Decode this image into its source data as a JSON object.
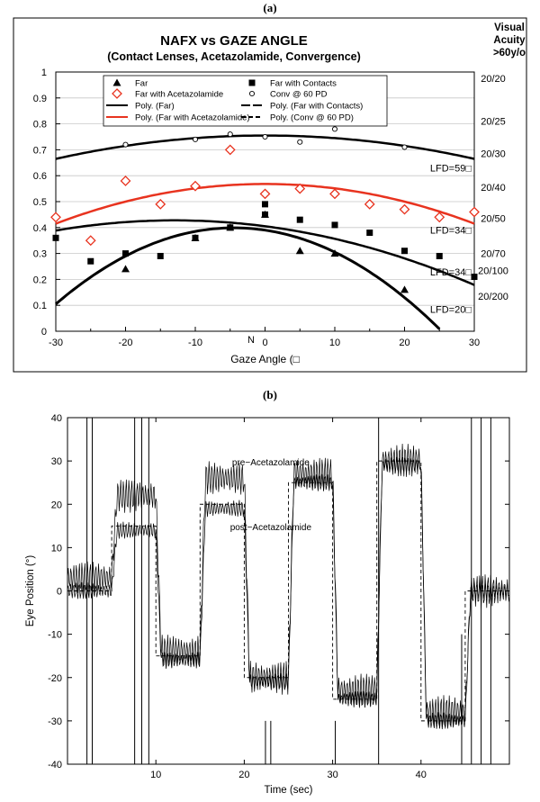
{
  "panel_a_label": "(a)",
  "panel_b_label": "(b)",
  "chart_data": [
    {
      "type": "scatter",
      "title": "NAFX vs GAZE ANGLE",
      "subtitle": "(Contact Lenses, Acetazolamide, Convergence)",
      "xlabel": "Gaze Angle (□",
      "ylabel": "",
      "xlim": [
        -30,
        30
      ],
      "ylim": [
        0,
        1
      ],
      "x_ticks": [
        "-30",
        "-20",
        "-10",
        "0",
        "10",
        "20",
        "30"
      ],
      "y_ticks": [
        "0",
        "0.1",
        "0.2",
        "0.3",
        "0.4",
        "0.5",
        "0.6",
        "0.7",
        "0.8",
        "0.9",
        "1"
      ],
      "extra_axis_label": "N",
      "grid": true,
      "legend_position": "top-center",
      "legend": [
        {
          "label": "Far",
          "marker": "triangle"
        },
        {
          "label": "Far with Contacts",
          "marker": "square"
        },
        {
          "label": "Far with Acetazolamide",
          "marker": "diamond"
        },
        {
          "label": "Conv @ 60 PD",
          "marker": "circle"
        },
        {
          "label": "Poly. (Far)",
          "line": "solid-black"
        },
        {
          "label": "Poly. (Far with Contacts)",
          "line": "longdash-black"
        },
        {
          "label": "Poly. (Far with Acetazolamide)",
          "line": "solid-red"
        },
        {
          "label": "Poly. (Conv @ 60 PD)",
          "line": "dash-black"
        }
      ],
      "series": [
        {
          "name": "Far",
          "marker": "triangle",
          "color": "#000000",
          "x": [
            -20,
            -10,
            -5,
            0,
            5,
            10,
            20
          ],
          "y": [
            0.24,
            0.36,
            0.4,
            0.45,
            0.31,
            0.3,
            0.16
          ]
        },
        {
          "name": "Far with Contacts",
          "marker": "square",
          "color": "#000000",
          "x": [
            -30,
            -25,
            -20,
            -15,
            -10,
            -5,
            0,
            0,
            5,
            10,
            15,
            20,
            25,
            30
          ],
          "y": [
            0.36,
            0.27,
            0.3,
            0.29,
            0.36,
            0.4,
            0.49,
            0.45,
            0.43,
            0.41,
            0.38,
            0.31,
            0.29,
            0.21
          ]
        },
        {
          "name": "Far with Acetazolamide",
          "marker": "diamond",
          "color": "#e8331f",
          "x": [
            -30,
            -25,
            -20,
            -15,
            -10,
            -5,
            0,
            5,
            10,
            15,
            20,
            25,
            30
          ],
          "y": [
            0.44,
            0.35,
            0.58,
            0.49,
            0.56,
            0.7,
            0.53,
            0.55,
            0.53,
            0.49,
            0.47,
            0.44,
            0.46
          ]
        },
        {
          "name": "Conv @ 60 PD",
          "marker": "circle",
          "color": "#000000",
          "x": [
            -20,
            -10,
            -5,
            0,
            5,
            10,
            20
          ],
          "y": [
            0.72,
            0.74,
            0.76,
            0.75,
            0.73,
            0.78,
            0.71
          ]
        }
      ],
      "fits": [
        {
          "name": "Poly. (Far)",
          "color": "#000000",
          "coef": [
            0.39,
            -0.004,
            -0.00045
          ],
          "width": 3
        },
        {
          "name": "Poly. (Far with Contacts)",
          "color": "#000000",
          "coef": [
            0.405,
            -0.0035,
            -0.000135
          ],
          "width": 2.5
        },
        {
          "name": "Poly. (Far with Acetazolamide)",
          "color": "#e8331f",
          "coef": [
            0.568,
            0.0,
            -0.00017
          ],
          "width": 2.5
        },
        {
          "name": "Poly. (Conv @ 60 PD)",
          "color": "#000000",
          "coef": [
            0.755,
            0.0,
            -0.0001
          ],
          "width": 2.5
        }
      ],
      "lfd_labels": [
        {
          "text": "LFD=59□",
          "y": 0.63
        },
        {
          "text": "LFD=34□",
          "y": 0.39
        },
        {
          "text": "LFD=34□",
          "y": 0.23
        },
        {
          "text": "LFD=20□",
          "y": 0.085
        }
      ],
      "acuity_header": [
        "Visual",
        "Acuity",
        ">60y/o"
      ],
      "acuity_labels": [
        {
          "text": "20/20",
          "y": 0.975
        },
        {
          "text": "20/25",
          "y": 0.81
        },
        {
          "text": "20/30",
          "y": 0.685
        },
        {
          "text": "20/40",
          "y": 0.555
        },
        {
          "text": "20/50",
          "y": 0.435
        },
        {
          "text": "20/70",
          "y": 0.3
        },
        {
          "text": "20/100",
          "y": 0.235
        },
        {
          "text": "20/200",
          "y": 0.135
        }
      ]
    },
    {
      "type": "line",
      "xlabel": "Time (sec)",
      "ylabel": "Eye Position (°)",
      "xlim": [
        0,
        50
      ],
      "ylim": [
        -40,
        40
      ],
      "x_ticks": [
        "10",
        "20",
        "30",
        "40"
      ],
      "y_ticks": [
        "-40",
        "-30",
        "-20",
        "-10",
        "0",
        "10",
        "20",
        "30",
        "40"
      ],
      "annotations": [
        {
          "text": "pre−Acetazolamide",
          "x": 23,
          "y": 29
        },
        {
          "text": "post−Acetazolamide",
          "x": 23,
          "y": 14
        }
      ],
      "target": {
        "name": "target",
        "style": "dashed",
        "steps": [
          [
            0,
            0
          ],
          [
            5,
            15
          ],
          [
            10,
            -15
          ],
          [
            15,
            20
          ],
          [
            20,
            -20
          ],
          [
            25,
            25
          ],
          [
            30,
            -25
          ],
          [
            35,
            30
          ],
          [
            40,
            -30
          ],
          [
            45,
            0
          ],
          [
            50,
            0
          ]
        ]
      },
      "series": [
        {
          "name": "pre-Acetazolamide",
          "levels": [
            [
              0,
              3
            ],
            [
              5,
              22
            ],
            [
              10,
              -14
            ],
            [
              15,
              26
            ],
            [
              20,
              -20
            ],
            [
              25,
              27
            ],
            [
              30,
              -23
            ],
            [
              35,
              30
            ],
            [
              40,
              -28
            ],
            [
              45,
              0
            ]
          ],
          "amplitude": 4
        },
        {
          "name": "post-Acetazolamide",
          "levels": [
            [
              0,
              0
            ],
            [
              5,
              14
            ],
            [
              10,
              -16
            ],
            [
              15,
              19
            ],
            [
              20,
              -21
            ],
            [
              25,
              25
            ],
            [
              30,
              -25
            ],
            [
              35,
              29
            ],
            [
              40,
              -30
            ],
            [
              45,
              0
            ]
          ],
          "amplitude": 2
        }
      ]
    }
  ]
}
